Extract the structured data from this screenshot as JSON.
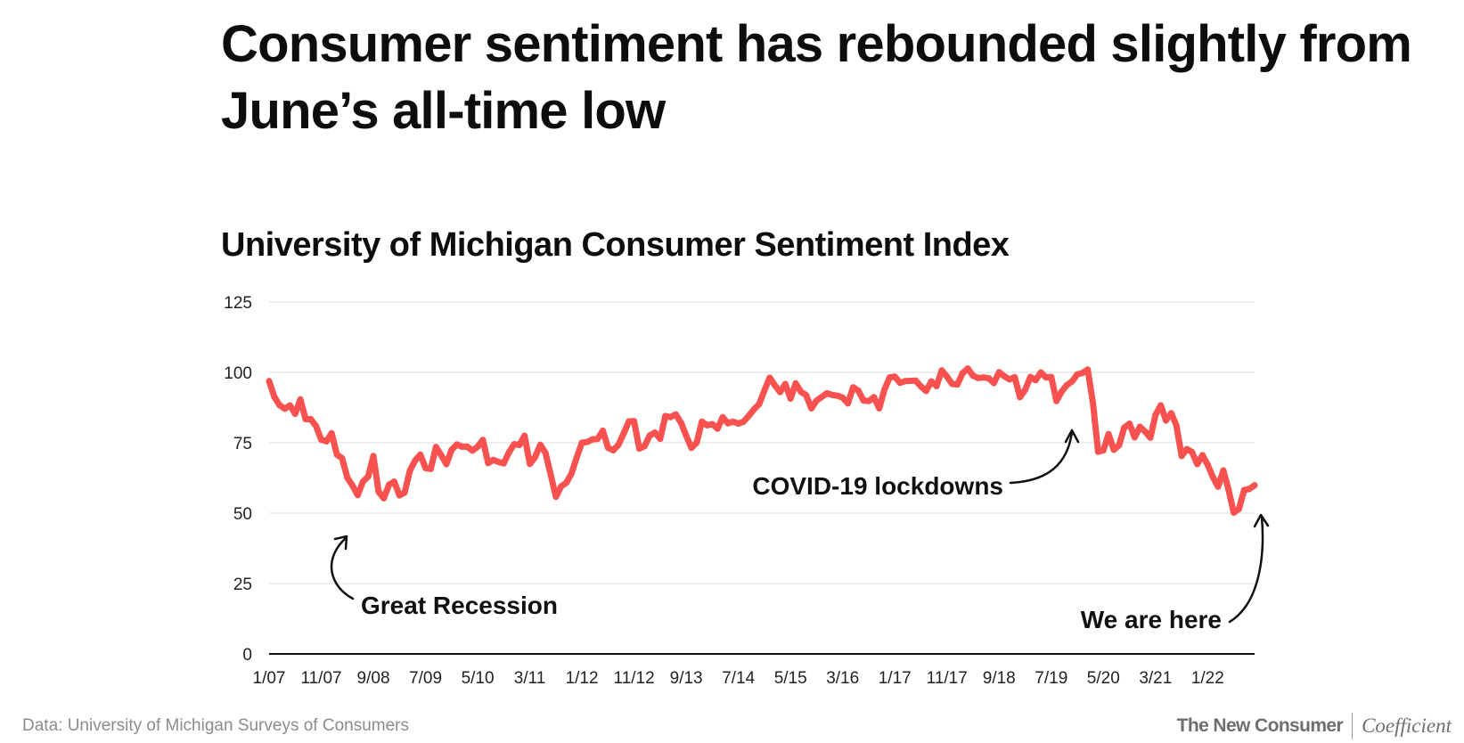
{
  "headline": "Consumer sentiment has rebounded slightly from June’s all-time low",
  "chart_data": {
    "type": "line",
    "title": "University of Michigan Consumer Sentiment Index",
    "ylim": [
      0,
      125
    ],
    "yticks": [
      0,
      25,
      50,
      75,
      100,
      125
    ],
    "xlim": [
      "2007-01",
      "2022-10"
    ],
    "xticks": [
      {
        "date": "2007-01",
        "label": "1/07"
      },
      {
        "date": "2007-11",
        "label": "11/07"
      },
      {
        "date": "2008-09",
        "label": "9/08"
      },
      {
        "date": "2009-07",
        "label": "7/09"
      },
      {
        "date": "2010-05",
        "label": "5/10"
      },
      {
        "date": "2011-03",
        "label": "3/11"
      },
      {
        "date": "2012-01",
        "label": "1/12"
      },
      {
        "date": "2012-11",
        "label": "11/12"
      },
      {
        "date": "2013-09",
        "label": "9/13"
      },
      {
        "date": "2014-07",
        "label": "7/14"
      },
      {
        "date": "2015-05",
        "label": "5/15"
      },
      {
        "date": "2016-03",
        "label": "3/16"
      },
      {
        "date": "2017-01",
        "label": "1/17"
      },
      {
        "date": "2017-11",
        "label": "11/17"
      },
      {
        "date": "2018-09",
        "label": "9/18"
      },
      {
        "date": "2019-07",
        "label": "7/19"
      },
      {
        "date": "2020-05",
        "label": "5/20"
      },
      {
        "date": "2021-03",
        "label": "3/21"
      },
      {
        "date": "2022-01",
        "label": "1/22"
      }
    ],
    "grid": true,
    "line_color": "#f7524f",
    "series": [
      {
        "x": [
          "2007-01",
          "2007-02",
          "2007-03",
          "2007-04",
          "2007-05",
          "2007-06",
          "2007-07",
          "2007-08",
          "2007-09",
          "2007-10",
          "2007-11",
          "2007-12",
          "2008-01",
          "2008-02",
          "2008-03",
          "2008-04",
          "2008-05",
          "2008-06",
          "2008-07",
          "2008-08",
          "2008-09",
          "2008-10",
          "2008-11",
          "2008-12",
          "2009-01",
          "2009-02",
          "2009-03",
          "2009-04",
          "2009-05",
          "2009-06",
          "2009-07",
          "2009-08",
          "2009-09",
          "2009-10",
          "2009-11",
          "2009-12",
          "2010-01",
          "2010-02",
          "2010-03",
          "2010-04",
          "2010-05",
          "2010-06",
          "2010-07",
          "2010-08",
          "2010-09",
          "2010-10",
          "2010-11",
          "2010-12",
          "2011-01",
          "2011-02",
          "2011-03",
          "2011-04",
          "2011-05",
          "2011-06",
          "2011-07",
          "2011-08",
          "2011-09",
          "2011-10",
          "2011-11",
          "2011-12",
          "2012-01",
          "2012-02",
          "2012-03",
          "2012-04",
          "2012-05",
          "2012-06",
          "2012-07",
          "2012-08",
          "2012-09",
          "2012-10",
          "2012-11",
          "2012-12",
          "2013-01",
          "2013-02",
          "2013-03",
          "2013-04",
          "2013-05",
          "2013-06",
          "2013-07",
          "2013-08",
          "2013-09",
          "2013-10",
          "2013-11",
          "2013-12",
          "2014-01",
          "2014-02",
          "2014-03",
          "2014-04",
          "2014-05",
          "2014-06",
          "2014-07",
          "2014-08",
          "2014-09",
          "2014-10",
          "2014-11",
          "2014-12",
          "2015-01",
          "2015-02",
          "2015-03",
          "2015-04",
          "2015-05",
          "2015-06",
          "2015-07",
          "2015-08",
          "2015-09",
          "2015-10",
          "2015-11",
          "2015-12",
          "2016-01",
          "2016-02",
          "2016-03",
          "2016-04",
          "2016-05",
          "2016-06",
          "2016-07",
          "2016-08",
          "2016-09",
          "2016-10",
          "2016-11",
          "2016-12",
          "2017-01",
          "2017-02",
          "2017-03",
          "2017-04",
          "2017-05",
          "2017-06",
          "2017-07",
          "2017-08",
          "2017-09",
          "2017-10",
          "2017-11",
          "2017-12",
          "2018-01",
          "2018-02",
          "2018-03",
          "2018-04",
          "2018-05",
          "2018-06",
          "2018-07",
          "2018-08",
          "2018-09",
          "2018-10",
          "2018-11",
          "2018-12",
          "2019-01",
          "2019-02",
          "2019-03",
          "2019-04",
          "2019-05",
          "2019-06",
          "2019-07",
          "2019-08",
          "2019-09",
          "2019-10",
          "2019-11",
          "2019-12",
          "2020-01",
          "2020-02",
          "2020-03",
          "2020-04",
          "2020-05",
          "2020-06",
          "2020-07",
          "2020-08",
          "2020-09",
          "2020-10",
          "2020-11",
          "2020-12",
          "2021-01",
          "2021-02",
          "2021-03",
          "2021-04",
          "2021-05",
          "2021-06",
          "2021-07",
          "2021-08",
          "2021-09",
          "2021-10",
          "2021-11",
          "2021-12",
          "2022-01",
          "2022-02",
          "2022-03",
          "2022-04",
          "2022-05",
          "2022-06",
          "2022-07",
          "2022-08",
          "2022-09",
          "2022-10"
        ],
        "values": [
          96.9,
          91.3,
          88.4,
          87.1,
          88.3,
          85.3,
          90.4,
          83.4,
          83.4,
          80.9,
          76.1,
          75.5,
          78.4,
          70.8,
          69.5,
          62.6,
          59.8,
          56.4,
          61.2,
          63.0,
          70.3,
          57.6,
          55.3,
          60.1,
          61.2,
          56.3,
          57.3,
          65.1,
          68.7,
          70.8,
          66.0,
          65.7,
          73.5,
          70.6,
          67.4,
          72.5,
          74.4,
          73.6,
          73.6,
          72.2,
          73.6,
          76.0,
          67.8,
          68.9,
          68.2,
          67.7,
          71.6,
          74.5,
          74.2,
          77.5,
          67.5,
          69.8,
          74.3,
          71.5,
          63.7,
          55.8,
          59.5,
          60.8,
          64.1,
          69.9,
          75.0,
          75.3,
          76.2,
          76.4,
          79.3,
          73.2,
          72.3,
          74.3,
          78.3,
          82.6,
          82.7,
          72.9,
          73.8,
          77.6,
          78.6,
          76.4,
          84.5,
          84.1,
          85.1,
          82.1,
          77.5,
          73.2,
          75.1,
          82.5,
          81.2,
          81.6,
          80.0,
          84.1,
          81.9,
          82.5,
          81.8,
          82.5,
          84.6,
          86.9,
          88.8,
          93.6,
          98.1,
          95.4,
          93.0,
          95.9,
          90.7,
          96.1,
          93.1,
          91.9,
          87.2,
          90.0,
          91.3,
          92.6,
          92.0,
          91.7,
          91.0,
          89.0,
          94.7,
          93.5,
          90.0,
          89.8,
          91.2,
          87.2,
          93.8,
          98.2,
          98.5,
          96.3,
          96.9,
          97.0,
          97.1,
          95.0,
          93.4,
          96.8,
          95.1,
          100.7,
          98.5,
          95.9,
          95.7,
          99.7,
          101.4,
          98.8,
          98.0,
          98.2,
          97.9,
          96.2,
          100.1,
          98.6,
          97.5,
          98.3,
          91.2,
          93.8,
          98.4,
          97.2,
          100.0,
          98.2,
          98.4,
          89.8,
          93.2,
          95.5,
          96.8,
          99.3,
          99.8,
          101.0,
          89.1,
          71.8,
          72.3,
          78.1,
          72.5,
          74.1,
          80.4,
          81.8,
          76.9,
          80.7,
          79.0,
          76.8,
          84.9,
          88.3,
          82.9,
          85.5,
          81.2,
          70.3,
          72.8,
          71.7,
          67.4,
          70.6,
          67.2,
          62.8,
          59.4,
          65.2,
          58.4,
          50.2,
          51.5,
          58.2,
          58.6,
          59.9
        ]
      }
    ],
    "annotations": [
      {
        "text": "Great Recession",
        "x": "2008-07",
        "y": 44
      },
      {
        "text": "COVID-19 lockdowns",
        "x": "2020-03",
        "y": 80
      },
      {
        "text": "We are here",
        "x": "2022-10",
        "y": 50
      }
    ],
    "source": "Data: University of Michigan Surveys of Consumers"
  },
  "brand": {
    "primary": "The New Consumer",
    "secondary": "Coefficient"
  }
}
